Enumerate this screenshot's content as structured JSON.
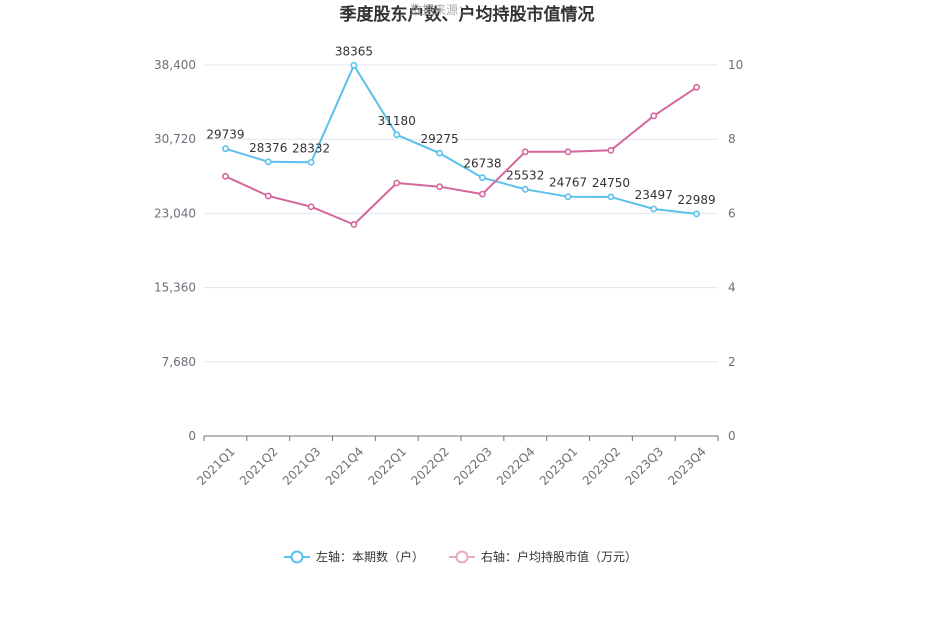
{
  "chart_data": {
    "type": "line",
    "title": "季度股东户数、户均持股市值情况",
    "watermark": "数据来源：",
    "categories": [
      "2021Q1",
      "2021Q2",
      "2021Q3",
      "2021Q4",
      "2022Q1",
      "2022Q2",
      "2022Q3",
      "2022Q4",
      "2023Q1",
      "2023Q2",
      "2023Q3",
      "2023Q4"
    ],
    "left_axis": {
      "ylim": [
        0,
        38400
      ],
      "ticks": [
        0,
        7680,
        15360,
        23040,
        30720,
        38400
      ],
      "tick_labels": [
        "0",
        "7,680",
        "15,360",
        "23,040",
        "30,720",
        "38,400"
      ]
    },
    "right_axis": {
      "ylim": [
        0,
        10
      ],
      "ticks": [
        0,
        2,
        4,
        6,
        8,
        10
      ],
      "tick_labels": [
        "0",
        "2",
        "4",
        "6",
        "8",
        "10"
      ]
    },
    "series": [
      {
        "name": "左轴：本期数（户）",
        "axis": "left",
        "color": "#5bc0eb",
        "values": [
          29739,
          28376,
          28332,
          38365,
          31180,
          29275,
          26738,
          25532,
          24767,
          24750,
          23497,
          22989
        ],
        "labels": [
          "29739",
          "28376",
          "28332",
          "38365",
          "31180",
          "29275",
          "26738",
          "25532",
          "24767",
          "24750",
          "23497",
          "22989"
        ]
      },
      {
        "name": "右轴：户均持股市值（万元）",
        "axis": "right",
        "color": "#d4679c",
        "values": [
          7.0,
          6.47,
          6.18,
          5.7,
          6.82,
          6.72,
          6.52,
          7.66,
          7.66,
          7.7,
          8.63,
          9.4
        ]
      }
    ],
    "grid": true,
    "legend": "bottom-center"
  }
}
